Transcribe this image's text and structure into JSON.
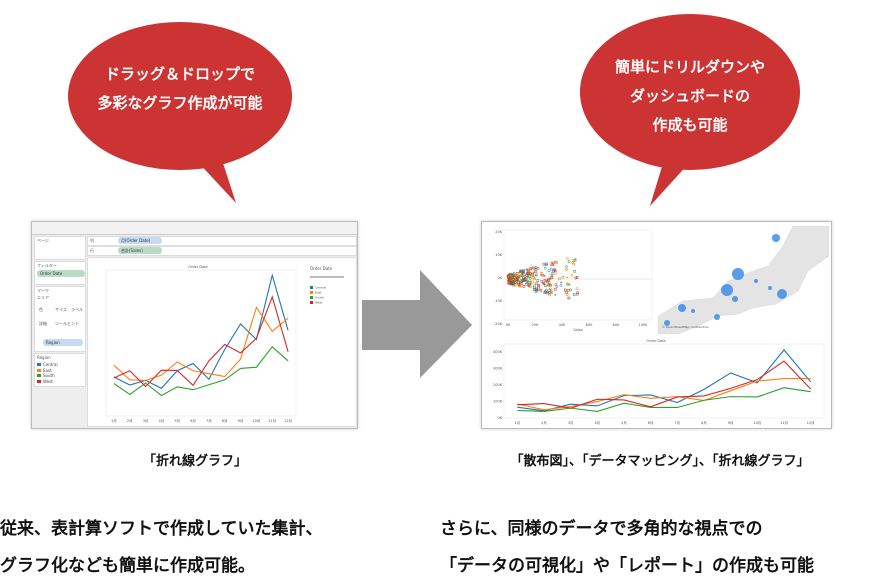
{
  "colors": {
    "bubble": "#cc3333",
    "arrow": "#999999",
    "central": "#1f77b4",
    "east": "#ff7f0e",
    "south": "#2ca02c",
    "west": "#d62728"
  },
  "bubble_left": {
    "lines": [
      "ドラッグ＆ドロップで",
      "多彩なグラフ作成が可能"
    ]
  },
  "bubble_right": {
    "lines": [
      "簡単にドリルダウンや",
      "ダッシュボードの",
      "作成も可能"
    ]
  },
  "arrow_icon": "right-arrow-icon",
  "left_screenshot": {
    "shelf_pages": "ページ",
    "shelf_filters": "フィルター",
    "filter_pill": "Order Date",
    "marks_label": "マーク",
    "marks_type": "エリア",
    "mark_buttons": [
      "色",
      "サイズ",
      "ラベル",
      "詳細",
      "ツールヒント"
    ],
    "region_pill": "Region",
    "columns_label": "列",
    "rows_label": "行",
    "columns_pill": "月(Order Date)",
    "rows_pill": "合計(Sales)",
    "legend_title": "Region",
    "chart_title": "Order Date",
    "side_filter_title": "Order Date"
  },
  "right_screenshot": {
    "scatter_xlabel": "Sales",
    "scatter_ylabel": "Profit",
    "scatter_xticks": [
      "0K",
      "20K",
      "40K",
      "60K",
      "80K",
      "100K"
    ],
    "scatter_yticks": [
      "20K",
      "10K",
      "0K",
      "-10K",
      "-20K"
    ],
    "map_credit": "© OpenStreetMap contributors",
    "line_title": "Order Date",
    "line_ylabel": "Sales"
  },
  "chart_data": [
    {
      "type": "line",
      "title": "Order Date",
      "ylabel": "Sales",
      "categories": [
        "1月",
        "2月",
        "3月",
        "4月",
        "5月",
        "6月",
        "7月",
        "8月",
        "9月",
        "10月",
        "11月",
        "12月"
      ],
      "legend": "right",
      "series": [
        {
          "name": "Central",
          "values": [
            134,
            106,
            122,
            95,
            155,
            180,
            126,
            228,
            315,
            262,
            482,
            293
          ]
        },
        {
          "name": "East",
          "values": [
            174,
            124,
            122,
            140,
            185,
            155,
            145,
            135,
            195,
            372,
            290,
            335
          ]
        },
        {
          "name": "South",
          "values": [
            111,
            74,
            113,
            70,
            100,
            90,
            107,
            124,
            163,
            167,
            237,
            189
          ]
        },
        {
          "name": "West",
          "values": [
            130,
            155,
            101,
            157,
            156,
            105,
            189,
            245,
            216,
            266,
            408,
            220
          ]
        }
      ]
    },
    {
      "type": "scatter",
      "xlabel": "Sales",
      "ylabel": "Profit",
      "xticks": [
        "0K",
        "20K",
        "40K",
        "60K",
        "80K",
        "100K"
      ],
      "yticks": [
        "20K",
        "10K",
        "0K",
        "-10K",
        "-20K"
      ]
    },
    {
      "type": "line",
      "title": "Order Date",
      "ylabel": "Sales",
      "categories": [
        "1月",
        "2月",
        "3月",
        "4月",
        "5月",
        "6月",
        "7月",
        "8月",
        "9月",
        "10月",
        "11月",
        "12月"
      ],
      "yticks": [
        "0K",
        "100K",
        "200K",
        "300K",
        "400K"
      ],
      "ylim": [
        0,
        450
      ],
      "series": [
        {
          "name": "Central",
          "values": [
            66,
            44,
            84,
            74,
            136,
            140,
            94,
            174,
            274,
            214,
            414,
            220
          ]
        },
        {
          "name": "East",
          "values": [
            86,
            50,
            70,
            100,
            142,
            120,
            130,
            106,
            166,
            224,
            240,
            240
          ]
        },
        {
          "name": "South",
          "values": [
            46,
            40,
            60,
            40,
            90,
            64,
            64,
            108,
            130,
            128,
            184,
            160
          ]
        },
        {
          "name": "West",
          "values": [
            80,
            88,
            60,
            114,
            110,
            68,
            128,
            134,
            180,
            234,
            346,
            176
          ]
        }
      ]
    }
  ],
  "captions": {
    "left": "「折れ線グラフ」",
    "right": "「散布図」、「データマッピング」、「折れ線グラフ」"
  },
  "body_left": [
    "従来、表計算ソフトで作成していた集計、",
    "グラフ化なども簡単に作成可能。"
  ],
  "body_right": [
    "さらに、同様のデータで多角的な視点での",
    "「データの可視化」や「レポート」の作成も可能"
  ]
}
